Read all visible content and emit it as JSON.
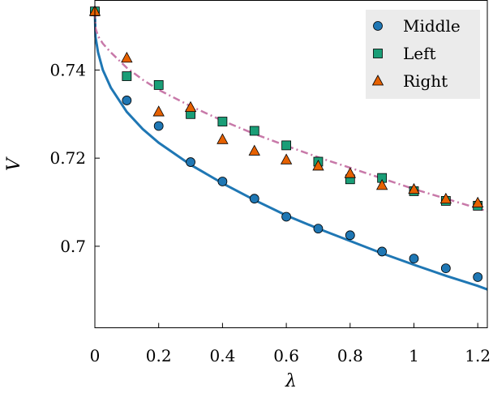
{
  "chart_data": {
    "type": "scatter",
    "xlabel": "λ",
    "ylabel": "V",
    "xlim": [
      0,
      1.23
    ],
    "ylim": [
      0.6815,
      0.7558
    ],
    "xticks": [
      0,
      0.2,
      0.4,
      0.6,
      0.8,
      1,
      1.2
    ],
    "xtick_labels": [
      "0",
      "0.2",
      "0.4",
      "0.6",
      "0.8",
      "1",
      "1.2"
    ],
    "yticks": [
      0.7,
      0.72,
      0.74
    ],
    "ytick_labels": [
      "0.7",
      "0.72",
      "0.74"
    ],
    "grid": false,
    "legend_position": "top-right",
    "series": [
      {
        "name": "Middle",
        "marker": "circle",
        "color": "#1f77b4",
        "x": [
          0,
          0.1,
          0.2,
          0.3,
          0.4,
          0.5,
          0.6,
          0.7,
          0.8,
          0.9,
          1.0,
          1.1,
          1.2
        ],
        "values": [
          0.7533,
          0.7331,
          0.7273,
          0.7191,
          0.7147,
          0.7108,
          0.7067,
          0.704,
          0.7025,
          0.6988,
          0.6972,
          0.695,
          0.693
        ]
      },
      {
        "name": "Left",
        "marker": "square",
        "color": "#1a9e77",
        "x": [
          0,
          0.1,
          0.2,
          0.3,
          0.4,
          0.5,
          0.6,
          0.7,
          0.8,
          0.9,
          1.0,
          1.1,
          1.2
        ],
        "values": [
          0.7533,
          0.7386,
          0.7366,
          0.73,
          0.7283,
          0.7262,
          0.7229,
          0.7192,
          0.7152,
          0.7155,
          0.7125,
          0.7103,
          0.7092
        ]
      },
      {
        "name": "Right",
        "marker": "triangle",
        "color": "#e66101",
        "x": [
          0,
          0.1,
          0.2,
          0.3,
          0.4,
          0.5,
          0.6,
          0.7,
          0.8,
          0.9,
          1.0,
          1.1,
          1.2
        ],
        "values": [
          0.7533,
          0.7427,
          0.7305,
          0.7315,
          0.7242,
          0.7216,
          0.7196,
          0.7182,
          0.7165,
          0.7138,
          0.7129,
          0.7107,
          0.7098
        ]
      }
    ],
    "curves": [
      {
        "style": "solid",
        "color": "#1f77b4",
        "x": [
          0,
          0.002,
          0.01,
          0.025,
          0.05,
          0.1,
          0.15,
          0.2,
          0.3,
          0.4,
          0.5,
          0.6,
          0.7,
          0.8,
          0.9,
          1.0,
          1.1,
          1.2,
          1.23
        ],
        "values": [
          0.7533,
          0.7475,
          0.744,
          0.74,
          0.736,
          0.7305,
          0.7266,
          0.7235,
          0.7185,
          0.7143,
          0.7105,
          0.707,
          0.704,
          0.7012,
          0.6984,
          0.6958,
          0.6933,
          0.691,
          0.6902
        ]
      },
      {
        "style": "dash-dot",
        "color": "#c879a9",
        "x": [
          0,
          0.002,
          0.01,
          0.025,
          0.05,
          0.1,
          0.15,
          0.2,
          0.3,
          0.4,
          0.5,
          0.6,
          0.7,
          0.8,
          0.9,
          1.0,
          1.1,
          1.2,
          1.23
        ],
        "values": [
          0.7533,
          0.7495,
          0.7477,
          0.746,
          0.744,
          0.7405,
          0.7378,
          0.7355,
          0.7318,
          0.7285,
          0.7255,
          0.7228,
          0.7202,
          0.7178,
          0.7154,
          0.713,
          0.7108,
          0.7086,
          0.708
        ]
      }
    ]
  }
}
